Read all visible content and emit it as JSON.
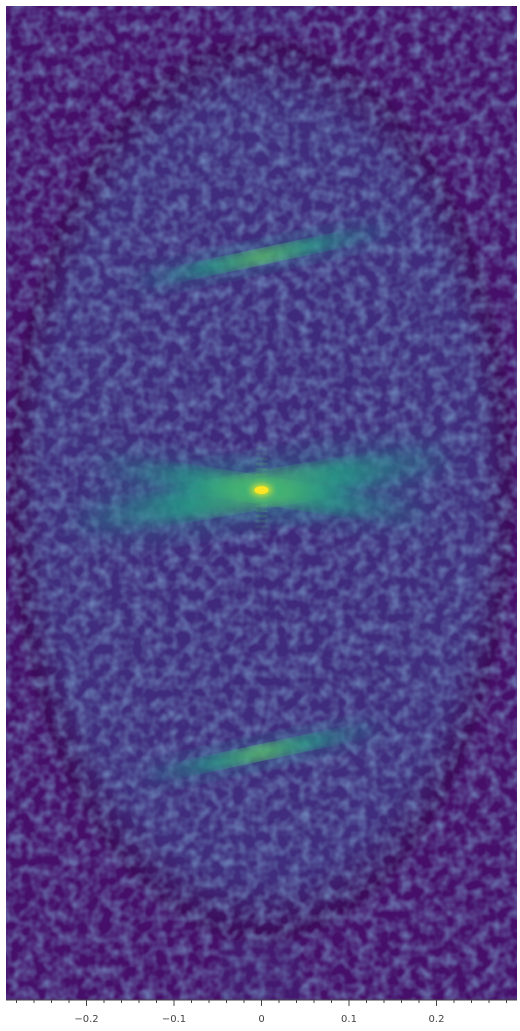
{
  "chart_data": {
    "type": "heatmap",
    "title": "",
    "xlabel": "",
    "ylabel": "",
    "xlim": [
      -0.292,
      0.292
    ],
    "x_ticks_major": [
      -0.2,
      -0.1,
      0,
      0.1,
      0.2
    ],
    "x_tick_labels": [
      "−0.2",
      "−0.1",
      "0",
      "0.1",
      "0.2"
    ],
    "x_ticks_minor_step": 0.02,
    "y_axis_visible": false,
    "colormap": "viridis",
    "colors": {
      "background": "#46106a",
      "dark": "#3a0b57",
      "mid": "#3b4f8a",
      "teal": "#22a884",
      "bright": "#7ad151",
      "peak": "#fde725"
    },
    "features": [
      {
        "name": "central peak",
        "x": 0.0,
        "y": 0.0
      },
      {
        "name": "upper streak",
        "x": 0.0,
        "y_rel": 0.49
      },
      {
        "name": "lower streak",
        "x": 0.0,
        "y_rel": -0.49
      }
    ],
    "grid": false,
    "legend": "none"
  }
}
